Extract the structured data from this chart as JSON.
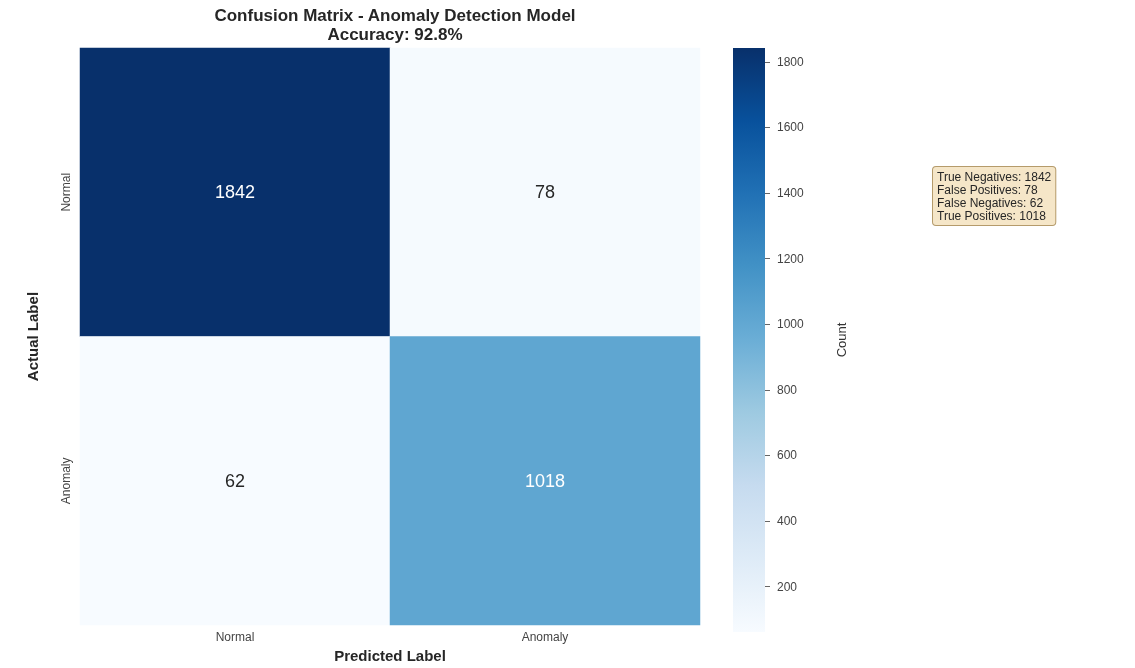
{
  "chart_data": {
    "type": "heatmap",
    "title": "Confusion Matrix - Anomaly Detection Model",
    "subtitle": "Accuracy: 92.8%",
    "xlabel": "Predicted Label",
    "ylabel": "Actual Label",
    "clabel": "Count",
    "categories": [
      "Normal",
      "Anomaly"
    ],
    "y_categories": [
      "Normal",
      "Anomaly"
    ],
    "cells": [
      [
        1842,
        78
      ],
      [
        62,
        1018
      ]
    ],
    "clim": [
      62,
      1842
    ],
    "cticks": [
      200,
      400,
      600,
      800,
      1000,
      1200,
      1400,
      1600,
      1800
    ],
    "data_labels": true,
    "annotations": [
      "True Negatives: 1842",
      "False Positives: 78",
      "False Negatives: 62",
      "True Positives: 1018"
    ]
  }
}
